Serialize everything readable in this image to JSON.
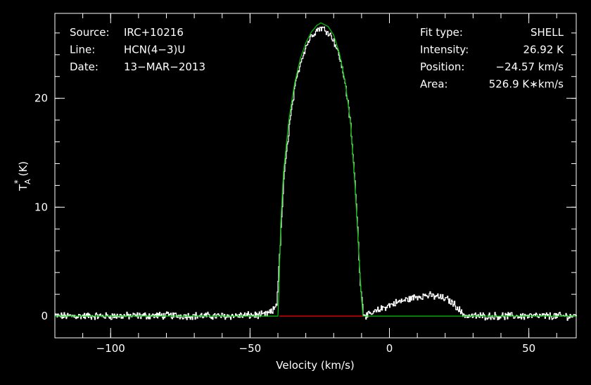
{
  "chart_data": {
    "type": "line",
    "xlabel": "Velocity (km/s)",
    "ylabel_main": "T",
    "ylabel_sub": "A",
    "ylabel_sup": "*",
    "ylabel_unit": " (K)",
    "xlim": [
      -120,
      67
    ],
    "ylim": [
      -2,
      27.8
    ],
    "x_ticks": [
      -100,
      -50,
      0,
      50
    ],
    "x_tick_labels": [
      "−100",
      "−50",
      "0",
      "50"
    ],
    "y_ticks": [
      0,
      10,
      20
    ],
    "y_tick_labels": [
      "0",
      "10",
      "20"
    ],
    "info_left": [
      {
        "key": "Source:",
        "value": "IRC+10216"
      },
      {
        "key": "Line:",
        "value": "HCN(4−3)U"
      },
      {
        "key": "Date:",
        "value": "13−MAR−2013"
      }
    ],
    "info_right": [
      {
        "key": "Fit type:",
        "value": "SHELL"
      },
      {
        "key": "Intensity:",
        "value": "26.92 K"
      },
      {
        "key": "Position:",
        "value": "−24.57 km/s"
      },
      {
        "key": "Area:",
        "value": "526.9 K∗km/s"
      }
    ],
    "series": [
      {
        "role": "observed spectrum",
        "color": "#ffffff",
        "points": [
          [
            -120,
            0.0
          ],
          [
            -100,
            0.0
          ],
          [
            -80,
            0.05
          ],
          [
            -60,
            0.0
          ],
          [
            -45,
            0.1
          ],
          [
            -42,
            0.4
          ],
          [
            -40.5,
            1.2
          ],
          [
            -39.5,
            5.5
          ],
          [
            -38,
            12.5
          ],
          [
            -36,
            17.5
          ],
          [
            -34,
            21.0
          ],
          [
            -32,
            23.3
          ],
          [
            -30,
            24.8
          ],
          [
            -28,
            25.8
          ],
          [
            -26,
            26.3
          ],
          [
            -24.6,
            26.5
          ],
          [
            -22,
            26.1
          ],
          [
            -20,
            25.3
          ],
          [
            -18,
            23.8
          ],
          [
            -16,
            21.5
          ],
          [
            -14,
            17.5
          ],
          [
            -12,
            10.5
          ],
          [
            -10.5,
            3.0
          ],
          [
            -9.5,
            0.3
          ],
          [
            -8,
            0.0
          ],
          [
            -5,
            0.4
          ],
          [
            -2,
            0.8
          ],
          [
            2,
            1.2
          ],
          [
            6,
            1.5
          ],
          [
            10,
            1.8
          ],
          [
            13,
            1.9
          ],
          [
            17,
            1.8
          ],
          [
            21,
            1.5
          ],
          [
            24,
            0.9
          ],
          [
            26,
            0.2
          ],
          [
            28,
            0.0
          ],
          [
            40,
            0.0
          ],
          [
            55,
            0.0
          ],
          [
            67,
            0.0
          ]
        ]
      },
      {
        "role": "SHELL fit",
        "color": "#00c800",
        "points": [
          [
            -120,
            0.0
          ],
          [
            -40,
            0.0
          ],
          [
            -39.6,
            2.5
          ],
          [
            -39,
            8.5
          ],
          [
            -38,
            13.2
          ],
          [
            -36,
            18.2
          ],
          [
            -34,
            21.4
          ],
          [
            -32,
            23.6
          ],
          [
            -30,
            25.1
          ],
          [
            -28,
            26.1
          ],
          [
            -26,
            26.7
          ],
          [
            -24.6,
            26.92
          ],
          [
            -22,
            26.6
          ],
          [
            -20,
            25.8
          ],
          [
            -18,
            24.2
          ],
          [
            -16,
            21.7
          ],
          [
            -14,
            17.9
          ],
          [
            -12.5,
            12.5
          ],
          [
            -11,
            6.0
          ],
          [
            -10,
            1.5
          ],
          [
            -9.5,
            0.0
          ],
          [
            67,
            0.0
          ]
        ]
      },
      {
        "role": "fit window baseline",
        "color": "#ff0000",
        "points": [
          [
            -39.5,
            0.0
          ],
          [
            -9.5,
            0.0
          ]
        ]
      }
    ]
  }
}
